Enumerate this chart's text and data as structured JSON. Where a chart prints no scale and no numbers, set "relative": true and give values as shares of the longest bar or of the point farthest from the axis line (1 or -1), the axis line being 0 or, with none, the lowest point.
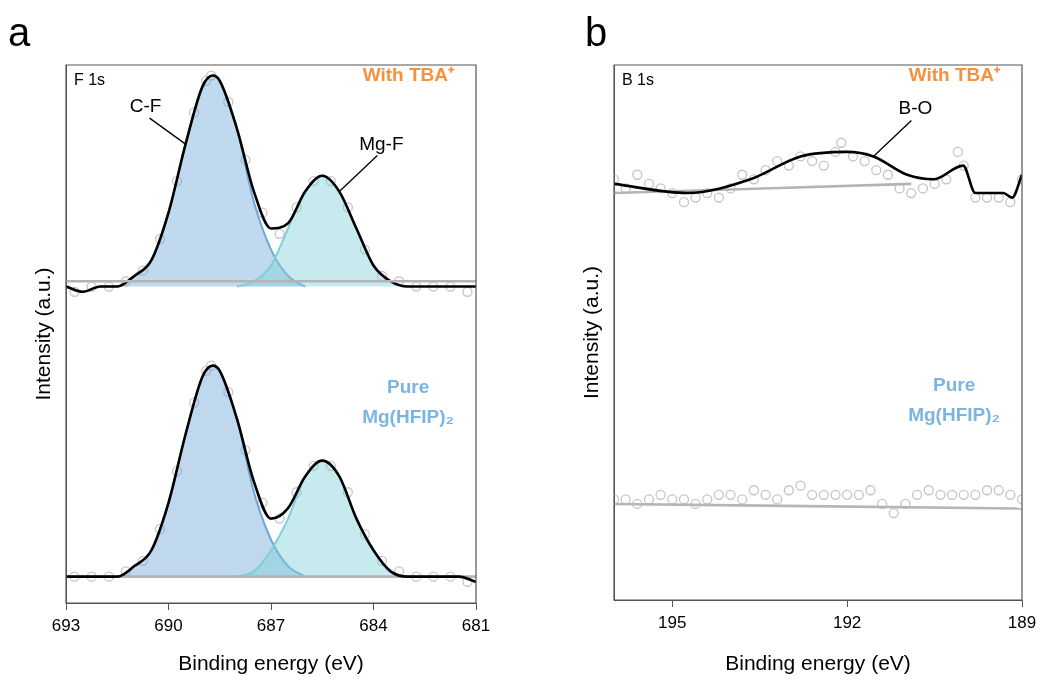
{
  "chart_data": [
    {
      "type": "line",
      "title": "a",
      "xlabel": "Binding energy (eV)",
      "ylabel": "Intensity (a.u.)",
      "relative": true,
      "xlim": [
        693,
        681
      ],
      "xticks": [
        693,
        690,
        687,
        684,
        681
      ],
      "grid": false,
      "legend": false,
      "annotations": [
        "F 1s",
        "With TBA⁺",
        "Pure\nMg(HFIP)₂",
        {
          "text": "C-F",
          "x": 689.5,
          "y": 0.87
        },
        {
          "text": "Mg-F",
          "x": 685,
          "y": 0.78
        }
      ],
      "series": [
        {
          "type": "scatter",
          "marker": "circle",
          "color": "#c4c4c4",
          "x": [
            692.75,
            692.25,
            691.75,
            691.25,
            690.75,
            690.25,
            689.75,
            689.25,
            688.9,
            688.75,
            688.25,
            687.75,
            687.25,
            686.75,
            686.25,
            685.75,
            685.25,
            684.75,
            684.25,
            683.75,
            683.25,
            682.75,
            682.25,
            681.75,
            681.25
          ],
          "values": [
            0.59,
            0.6,
            0.6,
            0.61,
            0.63,
            0.69,
            0.8,
            0.93,
            0.99,
            1.0,
            0.95,
            0.84,
            0.74,
            0.7,
            0.75,
            0.8,
            0.8,
            0.75,
            0.67,
            0.62,
            0.61,
            0.6,
            0.6,
            0.6,
            0.59
          ]
        },
        {
          "type": "scatter",
          "marker": "circle",
          "color": "#c5c5c5",
          "x": [
            692.75,
            692.25,
            691.75,
            691.25,
            690.75,
            690.25,
            689.75,
            689.25,
            688.9,
            688.75,
            688.25,
            687.75,
            687.25,
            686.75,
            686.25,
            685.75,
            685.25,
            684.75,
            684.25,
            683.75,
            683.25,
            682.75,
            682.25,
            681.75,
            681.25
          ],
          "values": [
            0.05,
            0.05,
            0.05,
            0.06,
            0.08,
            0.14,
            0.25,
            0.38,
            0.44,
            0.45,
            0.4,
            0.29,
            0.19,
            0.16,
            0.21,
            0.26,
            0.26,
            0.21,
            0.13,
            0.08,
            0.06,
            0.05,
            0.05,
            0.05,
            0.04
          ]
        },
        {
          "type": "area",
          "color": "#6fa8d8",
          "x": [
            692,
            691.5,
            691,
            690.5,
            690,
            689.5,
            689,
            688.7,
            688.5,
            688,
            687.5,
            687,
            686.5,
            686
          ],
          "values": [
            0.6,
            0.6,
            0.62,
            0.65,
            0.74,
            0.87,
            0.98,
            1.0,
            0.99,
            0.9,
            0.76,
            0.67,
            0.62,
            0.6
          ]
        },
        {
          "type": "area",
          "color": "#7fcfd8",
          "x": [
            688,
            687.5,
            687,
            686.5,
            686,
            685.5,
            685,
            684.5,
            684,
            683.5,
            683
          ],
          "values": [
            0.6,
            0.61,
            0.64,
            0.71,
            0.78,
            0.81,
            0.78,
            0.71,
            0.64,
            0.61,
            0.6
          ]
        },
        {
          "type": "area",
          "color": "#6ea7d7",
          "x": [
            692,
            691.5,
            691,
            690.5,
            690,
            689.5,
            689,
            688.7,
            688.5,
            688,
            687.5,
            687,
            686.5,
            686
          ],
          "values": [
            0.05,
            0.05,
            0.07,
            0.1,
            0.19,
            0.32,
            0.43,
            0.45,
            0.44,
            0.35,
            0.21,
            0.12,
            0.07,
            0.05
          ]
        },
        {
          "type": "area",
          "color": "#7ecfd7",
          "x": [
            688,
            687.5,
            687,
            686.5,
            686,
            685.5,
            685,
            684.5,
            684,
            683.5,
            683
          ],
          "values": [
            0.05,
            0.06,
            0.1,
            0.16,
            0.24,
            0.27,
            0.24,
            0.16,
            0.1,
            0.06,
            0.05
          ]
        },
        {
          "color": "#000000",
          "x": [
            693,
            692.5,
            692,
            691.5,
            691,
            690.5,
            690,
            689.5,
            689,
            688.7,
            688.5,
            688,
            687.5,
            687,
            686.5,
            686,
            685.5,
            685,
            684.5,
            684,
            683.5,
            683,
            682.5,
            682,
            681.5,
            681
          ],
          "values": [
            0.6,
            0.59,
            0.6,
            0.6,
            0.62,
            0.65,
            0.74,
            0.87,
            0.98,
            1.0,
            0.99,
            0.9,
            0.78,
            0.71,
            0.72,
            0.78,
            0.81,
            0.78,
            0.71,
            0.64,
            0.61,
            0.6,
            0.6,
            0.6,
            0.6,
            0.6
          ]
        },
        {
          "color": "#b5b5b5",
          "x": [
            693,
            681
          ],
          "values": [
            0.05,
            0.05
          ]
        },
        {
          "color": "#010101",
          "x": [
            693,
            692.5,
            692,
            691.5,
            691,
            690.5,
            690,
            689.5,
            689,
            688.7,
            688.5,
            688,
            687.5,
            687,
            686.5,
            686,
            685.5,
            685,
            684.5,
            684,
            683.5,
            683,
            682.5,
            682,
            681.5,
            681
          ],
          "values": [
            0.05,
            0.05,
            0.05,
            0.05,
            0.07,
            0.1,
            0.19,
            0.32,
            0.43,
            0.45,
            0.44,
            0.35,
            0.23,
            0.16,
            0.18,
            0.24,
            0.27,
            0.24,
            0.16,
            0.1,
            0.06,
            0.05,
            0.05,
            0.05,
            0.05,
            0.04
          ]
        },
        {
          "color": "#b4b4b4",
          "x": [
            693,
            681
          ],
          "values": [
            0.61,
            0.61
          ]
        }
      ]
    },
    {
      "type": "line",
      "title": "b",
      "xlabel": "Binding energy (eV)",
      "ylabel": "Intensity (a.u.)",
      "relative": true,
      "xlim": [
        196,
        189
      ],
      "xticks": [
        195,
        192,
        189
      ],
      "grid": false,
      "legend": false,
      "annotations": [
        "B 1s",
        "With TBA⁺",
        "Pure\nMg(HFIP)₂",
        {
          "text": "B-O",
          "x": 191.55,
          "y": 0.97
        }
      ],
      "series": [
        {
          "type": "scatter",
          "marker": "circle",
          "color": "#c4c4c4",
          "x": [
            196,
            195.8,
            195.6,
            195.4,
            195.2,
            195,
            194.8,
            194.6,
            194.4,
            194.2,
            194,
            193.8,
            193.6,
            193.4,
            193.2,
            193,
            192.8,
            192.6,
            192.4,
            192.2,
            192.1,
            191.9,
            191.7,
            191.5,
            191.3,
            191.1,
            190.9,
            190.7,
            190.5,
            190.3,
            190.1,
            190,
            189.8,
            189.6,
            189.4,
            189.2,
            189
          ],
          "values": [
            0.92,
            0.9,
            0.93,
            0.91,
            0.9,
            0.89,
            0.87,
            0.88,
            0.89,
            0.88,
            0.9,
            0.93,
            0.92,
            0.94,
            0.96,
            0.95,
            0.97,
            0.96,
            0.95,
            0.98,
            1.0,
            0.97,
            0.96,
            0.94,
            0.93,
            0.9,
            0.89,
            0.9,
            0.91,
            0.92,
            0.98,
            0.95,
            0.88,
            0.88,
            0.88,
            0.87,
            0.92
          ]
        },
        {
          "type": "scatter",
          "marker": "circle",
          "color": "#c5c5c5",
          "x": [
            196,
            195.8,
            195.6,
            195.4,
            195.2,
            195,
            194.8,
            194.6,
            194.4,
            194.2,
            194,
            193.8,
            193.6,
            193.4,
            193.2,
            193,
            192.8,
            192.6,
            192.4,
            192.2,
            192,
            191.8,
            191.6,
            191.4,
            191.2,
            191,
            190.8,
            190.6,
            190.4,
            190.2,
            190,
            189.8,
            189.6,
            189.4,
            189.2,
            189
          ],
          "values": [
            0.22,
            0.22,
            0.21,
            0.22,
            0.23,
            0.22,
            0.22,
            0.21,
            0.22,
            0.23,
            0.23,
            0.22,
            0.24,
            0.23,
            0.22,
            0.24,
            0.25,
            0.23,
            0.23,
            0.23,
            0.23,
            0.23,
            0.24,
            0.21,
            0.19,
            0.21,
            0.23,
            0.24,
            0.23,
            0.23,
            0.23,
            0.23,
            0.24,
            0.24,
            0.23,
            0.22
          ]
        },
        {
          "color": "#b4b4b4",
          "x": [
            196,
            190.9
          ],
          "values": [
            0.89,
            0.91
          ]
        },
        {
          "color": "#b5b5b5",
          "x": [
            196,
            189
          ],
          "values": [
            0.21,
            0.2
          ]
        },
        {
          "color": "#000000",
          "x": [
            196,
            194.74,
            193.66,
            192.8,
            192,
            191.55,
            190.97,
            190.52,
            190.01,
            189.8,
            189.32,
            189.17,
            189
          ],
          "values": [
            0.91,
            0.89,
            0.92,
            0.97,
            0.98,
            0.97,
            0.93,
            0.92,
            0.95,
            0.89,
            0.89,
            0.88,
            0.93
          ]
        }
      ]
    }
  ]
}
